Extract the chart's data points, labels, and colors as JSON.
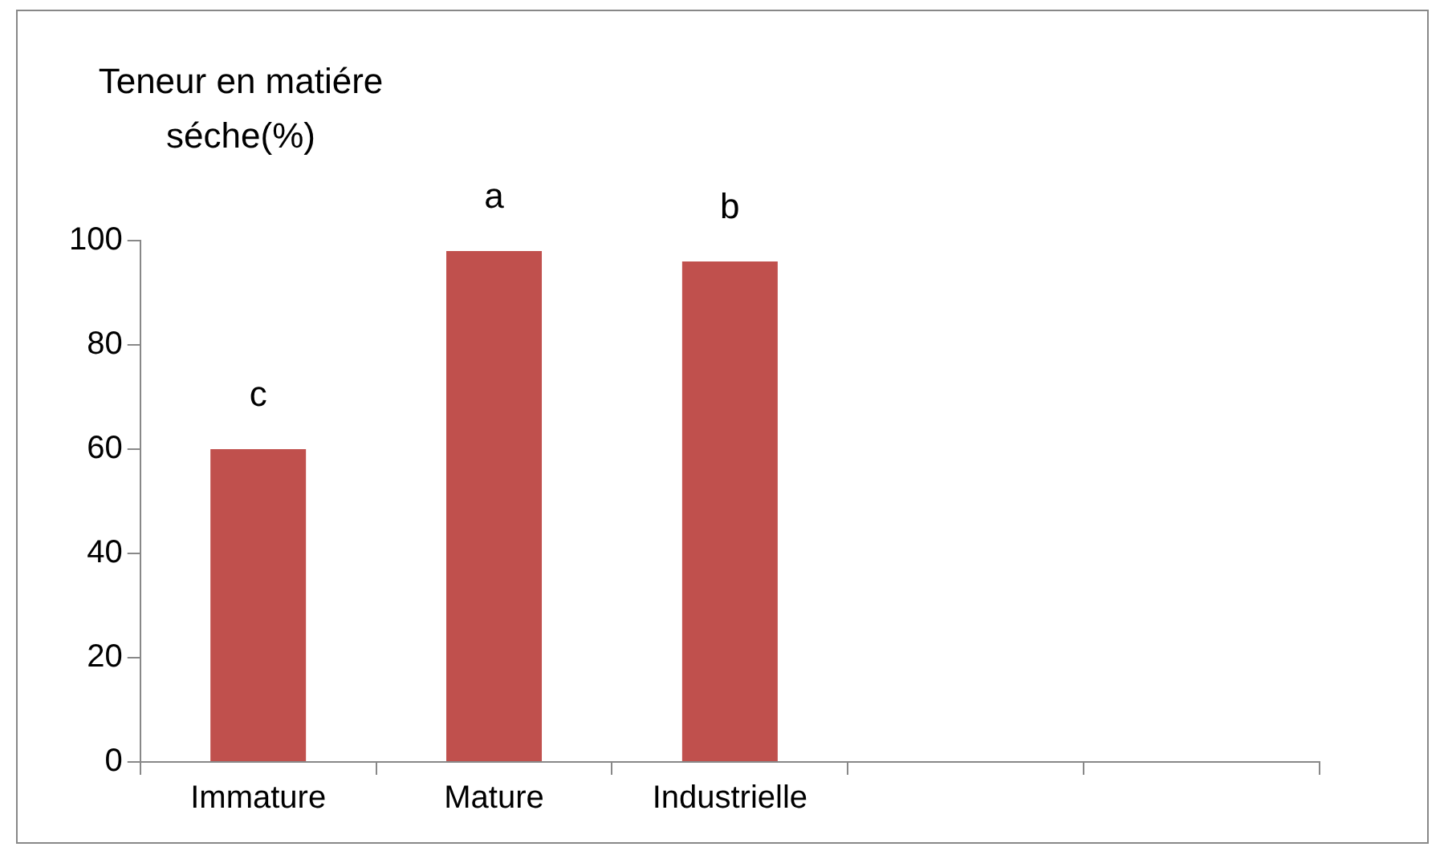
{
  "chart_data": {
    "type": "bar",
    "ylabel": "Teneur en matiére séche(%)",
    "categories": [
      "Immature",
      "Mature",
      "Industrielle",
      null,
      null
    ],
    "values": [
      60,
      98,
      96,
      null,
      null
    ],
    "color": "#c0504d",
    "ylim": [
      0,
      100
    ],
    "yticks": [
      0,
      20,
      40,
      60,
      80,
      100
    ],
    "grid": false,
    "legend": false,
    "annotations": [
      {
        "text": "c",
        "x": "Immature",
        "y": 60
      },
      {
        "text": "a",
        "x": "Mature",
        "y": 98
      },
      {
        "text": "b",
        "x": "Industrielle",
        "y": 96
      }
    ]
  }
}
